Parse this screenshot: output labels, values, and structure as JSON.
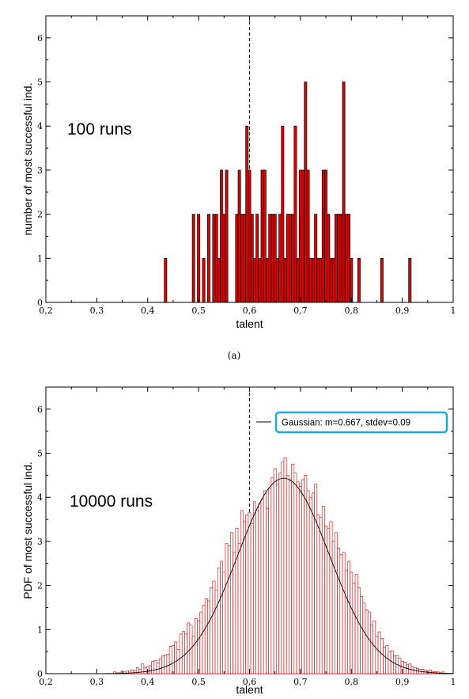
{
  "chart_data": [
    {
      "type": "bar",
      "annotation": "100 runs",
      "caption": "(a)",
      "xlabel": "talent",
      "ylabel": "number of most successful ind.",
      "xlim": [
        0.2,
        1.0
      ],
      "ylim": [
        0,
        6.5
      ],
      "x_ticks": [
        "0,2",
        "0,3",
        "0,4",
        "0,5",
        "0,6",
        "0,7",
        "0,8",
        "0,9",
        "1"
      ],
      "y_ticks": [
        "0",
        "1",
        "2",
        "3",
        "4",
        "5",
        "6"
      ],
      "reference_line_x": 0.6,
      "bin_width": 0.005,
      "color": "#e00000",
      "edge_color": "#000000",
      "x": [
        0.435,
        0.49,
        0.5,
        0.51,
        0.52,
        0.53,
        0.535,
        0.54,
        0.545,
        0.55,
        0.555,
        0.575,
        0.58,
        0.585,
        0.59,
        0.595,
        0.6,
        0.605,
        0.61,
        0.615,
        0.62,
        0.625,
        0.63,
        0.635,
        0.64,
        0.645,
        0.65,
        0.655,
        0.66,
        0.665,
        0.67,
        0.675,
        0.68,
        0.685,
        0.69,
        0.695,
        0.7,
        0.705,
        0.71,
        0.715,
        0.72,
        0.725,
        0.73,
        0.735,
        0.74,
        0.745,
        0.75,
        0.755,
        0.76,
        0.765,
        0.77,
        0.775,
        0.78,
        0.785,
        0.79,
        0.795,
        0.8,
        0.815,
        0.86,
        0.915
      ],
      "values": [
        1,
        2,
        2,
        1,
        2,
        2,
        2,
        1,
        3,
        2,
        3,
        2,
        3,
        2,
        2,
        4,
        3,
        2,
        1,
        2,
        1,
        3,
        3,
        1,
        2,
        2,
        2,
        1,
        2,
        4,
        1,
        2,
        2,
        2,
        4,
        1,
        3,
        3,
        5,
        3,
        1,
        1,
        2,
        1,
        1,
        3,
        3,
        2,
        1,
        1,
        2,
        2,
        2,
        5,
        2,
        2,
        1,
        1,
        1,
        1
      ]
    },
    {
      "type": "bar",
      "annotation": "10000 runs",
      "xlabel": "talent",
      "ylabel": "PDF of most successful ind.",
      "xlim": [
        0.2,
        1.0
      ],
      "ylim": [
        0,
        6.5
      ],
      "x_ticks": [
        "0,2",
        "0,3",
        "0,4",
        "0,5",
        "0,6",
        "0,7",
        "0,8",
        "0,9",
        "1"
      ],
      "y_ticks": [
        "0",
        "1",
        "2",
        "3",
        "4",
        "5",
        "6"
      ],
      "reference_line_x": 0.6,
      "legend": "Gaussian: m=0.667, stdev=0.09",
      "legend_position": "top-right",
      "legend_border_color": "#1fa8d8",
      "fit": {
        "mean": 0.667,
        "stdev": 0.09
      },
      "bin_width": 0.005,
      "color": "#ffffff",
      "edge_color": "#e00000",
      "x": [
        0.335,
        0.34,
        0.345,
        0.35,
        0.355,
        0.36,
        0.365,
        0.37,
        0.375,
        0.38,
        0.385,
        0.39,
        0.395,
        0.4,
        0.405,
        0.41,
        0.415,
        0.42,
        0.425,
        0.43,
        0.435,
        0.44,
        0.445,
        0.45,
        0.455,
        0.46,
        0.465,
        0.47,
        0.475,
        0.48,
        0.485,
        0.49,
        0.495,
        0.5,
        0.505,
        0.51,
        0.515,
        0.52,
        0.525,
        0.53,
        0.535,
        0.54,
        0.545,
        0.55,
        0.555,
        0.56,
        0.565,
        0.57,
        0.575,
        0.58,
        0.585,
        0.59,
        0.595,
        0.6,
        0.605,
        0.61,
        0.615,
        0.62,
        0.625,
        0.63,
        0.635,
        0.64,
        0.645,
        0.65,
        0.655,
        0.66,
        0.665,
        0.67,
        0.675,
        0.68,
        0.685,
        0.69,
        0.695,
        0.7,
        0.705,
        0.71,
        0.715,
        0.72,
        0.725,
        0.73,
        0.735,
        0.74,
        0.745,
        0.75,
        0.755,
        0.76,
        0.765,
        0.77,
        0.775,
        0.78,
        0.785,
        0.79,
        0.795,
        0.8,
        0.805,
        0.81,
        0.815,
        0.82,
        0.825,
        0.83,
        0.835,
        0.84,
        0.845,
        0.85,
        0.855,
        0.86,
        0.865,
        0.87,
        0.875,
        0.88,
        0.885,
        0.89,
        0.895,
        0.9,
        0.905,
        0.91,
        0.915,
        0.92,
        0.925,
        0.93,
        0.935,
        0.94,
        0.945,
        0.95,
        0.955,
        0.96,
        0.965,
        0.97,
        0.975,
        0.98
      ],
      "values": [
        0.04,
        0.02,
        0.02,
        0.06,
        0.04,
        0.06,
        0.06,
        0.09,
        0.06,
        0.14,
        0.1,
        0.22,
        0.14,
        0.16,
        0.18,
        0.28,
        0.3,
        0.24,
        0.34,
        0.4,
        0.42,
        0.44,
        0.62,
        0.64,
        0.72,
        0.55,
        0.9,
        0.96,
        0.9,
        1.15,
        1.1,
        0.85,
        1.25,
        1.2,
        1.4,
        1.55,
        1.7,
        1.65,
        1.95,
        2.1,
        1.9,
        2.4,
        2.55,
        2.3,
        2.95,
        2.9,
        3.2,
        2.75,
        3.3,
        2.95,
        3.7,
        3.45,
        3.6,
        3.65,
        3.4,
        3.9,
        3.7,
        3.85,
        3.95,
        4.15,
        3.75,
        4.2,
        4.45,
        4.65,
        4.3,
        4.55,
        4.8,
        4.9,
        4.5,
        4.4,
        4.75,
        4.55,
        4.35,
        4.25,
        4.4,
        4.5,
        4.15,
        4.0,
        4.1,
        4.3,
        3.6,
        3.55,
        3.8,
        3.35,
        3.3,
        3.45,
        3.0,
        3.2,
        2.85,
        2.7,
        2.75,
        2.35,
        2.55,
        2.3,
        2.05,
        2.25,
        1.95,
        1.75,
        1.6,
        1.45,
        1.4,
        1.1,
        1.2,
        0.85,
        0.95,
        0.8,
        0.6,
        0.64,
        0.5,
        0.52,
        0.4,
        0.42,
        0.35,
        0.28,
        0.26,
        0.2,
        0.22,
        0.16,
        0.14,
        0.12,
        0.1,
        0.1,
        0.08,
        0.06,
        0.08,
        0.04,
        0.05,
        0.04,
        0.02,
        0.04
      ]
    }
  ]
}
